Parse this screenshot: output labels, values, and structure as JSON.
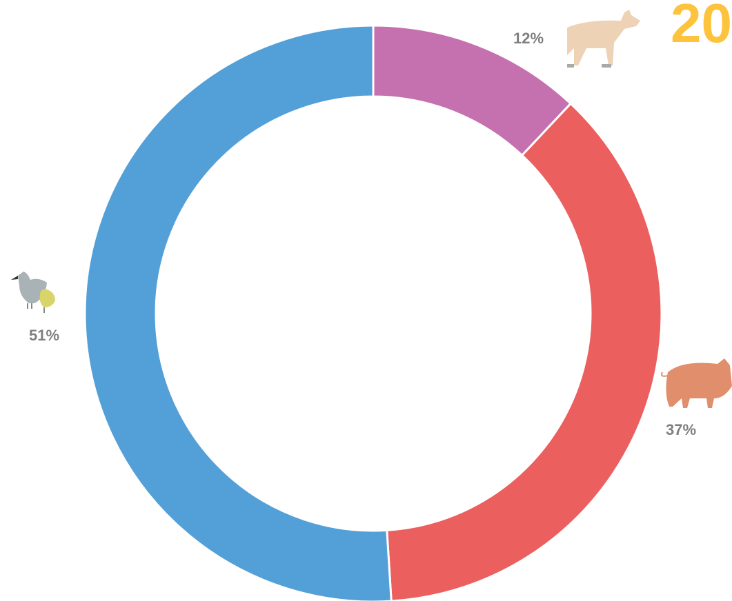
{
  "chart_data": {
    "type": "donut",
    "title": "20",
    "values": [
      12,
      37,
      51
    ],
    "value_labels": [
      "12%",
      "37%",
      "51%"
    ],
    "colors": [
      "#c571b0",
      "#eb5f5f",
      "#539fd7"
    ]
  }
}
